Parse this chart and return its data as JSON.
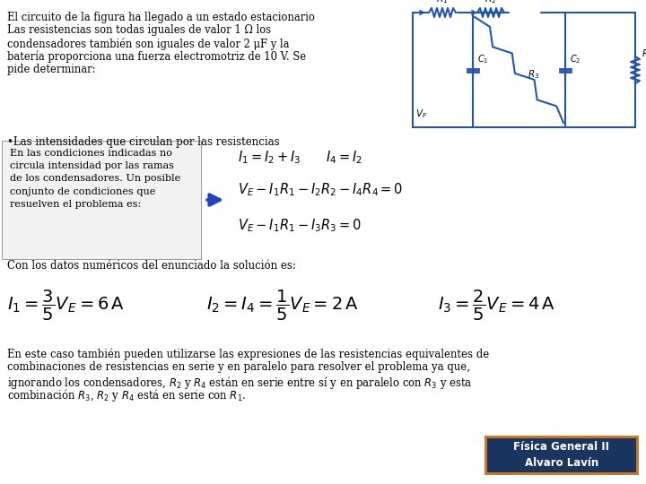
{
  "bg_color": "#ffffff",
  "title_block_text_lines": [
    "El circuito de la figura ha llegado a un estado estacionario",
    "Las resistencias son todas iguales de valor 1 Ω los",
    "condensadores también son iguales de valor 2 μF y la",
    "batería proporciona una fuerza electromotriz de 10 V. Se",
    "pide determinar:"
  ],
  "bullet_text": "•Las intensidades que circulan por las resistencias",
  "left_box_lines": [
    "En las condiciones indicadas no",
    "circula intensidad por las ramas",
    "de los condensadores. Un posible",
    "conjunto de condiciones que",
    "resuelven el problema es:"
  ],
  "eq1_line1": "$I_1 = I_2 + I_3 \\qquad I_4 = I_2$",
  "eq1_line2": "$V_E - I_1R_1 - I_2R_2 - I_4R_4 = 0$",
  "eq1_line3": "$V_E - I_1R_1 - I_3R_3 = 0$",
  "numerical_label": "Con los datos numéricos del enunciado la solución es:",
  "num_eq1": "$I_1 = \\dfrac{3}{5}V_E = 6\\,\\mathrm{A}$",
  "num_eq2": "$I_2 = I_4 = \\dfrac{1}{5}V_E = 2\\,\\mathrm{A}$",
  "num_eq3": "$I_3 = \\dfrac{2}{5}V_E = 4\\,\\mathrm{A}$",
  "bottom_lines": [
    "En este caso también pueden utilizarse las expresiones de las resistencias equivalentes de",
    "combinaciones de resistencias en serie y en paralelo para resolver el problema ya que,",
    "ignorando los condensadores, $R_2$ y $R_4$ están en serie entre sí y en paralelo con $R_3$ y esta",
    "combinación $R_3$, $R_2$ y $R_4$ está en serie con $R_1$."
  ],
  "badge_line1": "Física General II",
  "badge_line2": "Alvaro Lavín",
  "badge_bg": "#c87828",
  "badge_inner_bg": "#1a3560",
  "text_color": "#000000",
  "circuit_color": "#2255aa",
  "wire_color": "#2266bb"
}
